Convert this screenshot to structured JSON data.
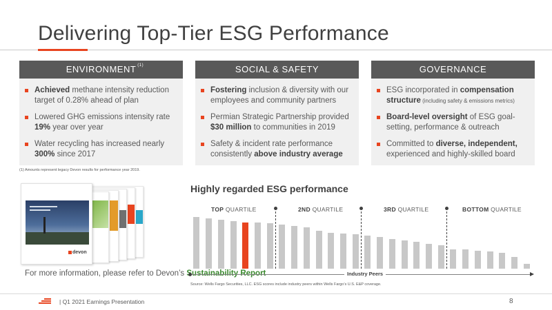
{
  "slide": {
    "title": "Delivering Top-Tier ESG Performance",
    "footer": "|  Q1 2021 Earnings Presentation",
    "page_number": "8"
  },
  "panels": [
    {
      "heading": "ENVIRONMENT",
      "heading_sup": "(1)",
      "items": [
        {
          "pre": "",
          "bold": "Achieved",
          "post": " methane intensity reduction target of 0.28% ahead of plan"
        },
        {
          "pre": "Lowered GHG emissions intensity rate ",
          "bold": "19%",
          "post": " year over year"
        },
        {
          "pre": "Water recycling has increased nearly ",
          "bold": "300%",
          "post": " since 2017"
        }
      ]
    },
    {
      "heading": "SOCIAL & SAFETY",
      "heading_sup": "",
      "items": [
        {
          "pre": "",
          "bold": "Fostering",
          "post": " inclusion & diversity with our employees and community partners"
        },
        {
          "pre": "Permian Strategic Partnership provided ",
          "bold": "$30 million",
          "post": " to communities in 2019"
        },
        {
          "pre": "Safety & incident rate performance consistently ",
          "bold": "above industry average",
          "post": ""
        }
      ]
    },
    {
      "heading": "GOVERNANCE",
      "heading_sup": "",
      "items": [
        {
          "pre": "ESG incorporated in ",
          "bold": "compensation structure",
          "post": "",
          "small": " (including safety & emissions metrics)"
        },
        {
          "pre": "",
          "bold": "Board-level oversight",
          "post": " of ESG goal-setting, performance & outreach"
        },
        {
          "pre": "Committed to ",
          "bold": "diverse, independent,",
          "post": " experienced and highly-skilled board"
        }
      ]
    }
  ],
  "footnote": "(1)  Amounts represent legacy Devon results for performance year 2019.",
  "report": {
    "logo_text": "devon",
    "caption_pre": "For more information, please refer to Devon’s ",
    "caption_link": "Sustainability Report"
  },
  "chart_data": {
    "type": "bar",
    "title": "Highly regarded ESG performance",
    "xlabel": "Industry Peers",
    "ylabel": "",
    "quartiles": [
      {
        "bold": "TOP",
        "label": " QUARTILE"
      },
      {
        "bold": "2ND",
        "label": " QUARTILE"
      },
      {
        "bold": "3RD",
        "label": " QUARTILE"
      },
      {
        "bold": "BOTTOM",
        "label": " QUARTILE"
      }
    ],
    "highlight_index": 4,
    "colors": {
      "peer": "#c8c8c8",
      "devon": "#e8441f"
    },
    "values": [
      92,
      89,
      87,
      84,
      82,
      82,
      80,
      78,
      76,
      73,
      67,
      64,
      62,
      61,
      58,
      56,
      53,
      50,
      47,
      44,
      42,
      34,
      34,
      32,
      31,
      28,
      21,
      9
    ],
    "quartile_boundaries_after": [
      6,
      13,
      20
    ],
    "ylim": [
      0,
      100
    ]
  },
  "source": "Source: Wells Fargo Securities, LLC. ESG scores include industry peers within Wells Fargo’s U.S. E&P coverage."
}
